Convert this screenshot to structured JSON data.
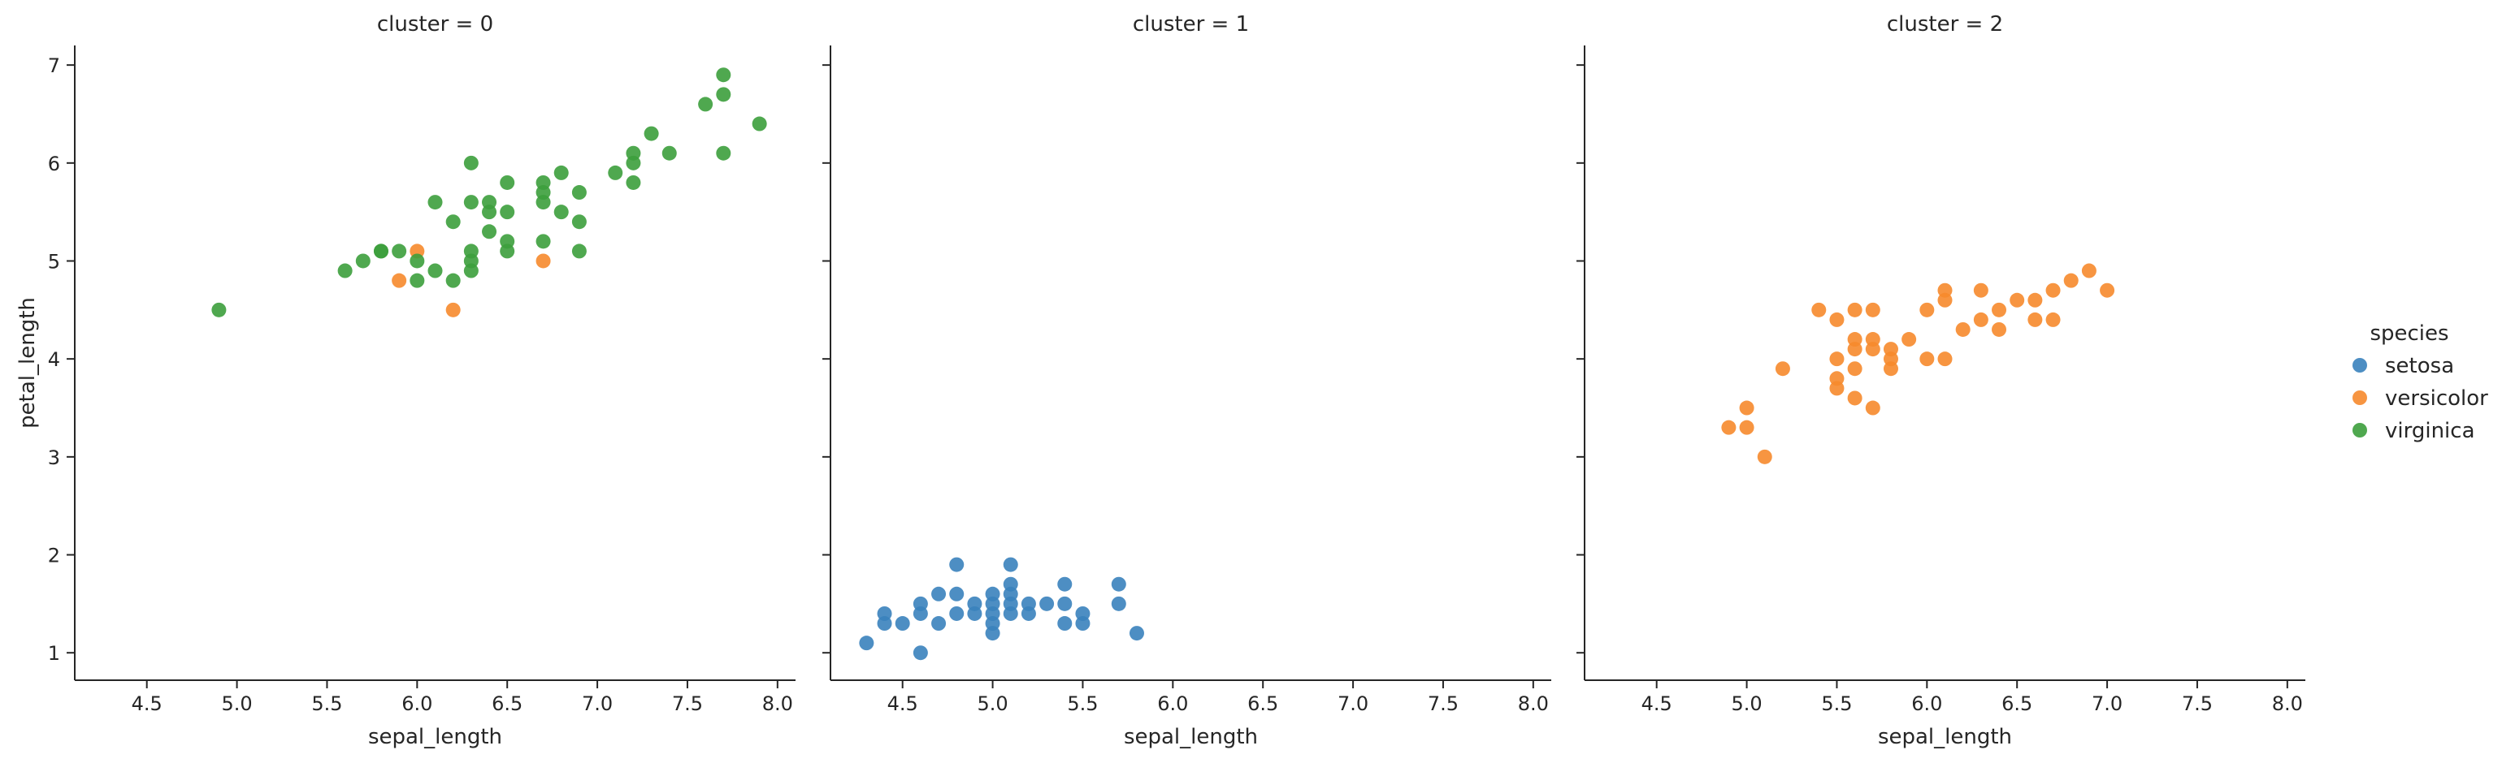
{
  "chart_data": {
    "type": "scatter",
    "xlabel": "sepal_length",
    "ylabel": "petal_length",
    "xlim": [
      4.1,
      8.1
    ],
    "ylim": [
      0.72,
      7.2
    ],
    "x_ticks": [
      "4.5",
      "5.0",
      "5.5",
      "6.0",
      "6.5",
      "7.0",
      "7.5",
      "8.0"
    ],
    "y_ticks": [
      "1",
      "2",
      "3",
      "4",
      "5",
      "6",
      "7"
    ],
    "grid": false,
    "legend": {
      "title": "species",
      "placement": "right",
      "entries": [
        {
          "label": "setosa",
          "color": "#3a82bd"
        },
        {
          "label": "versicolor",
          "color": "#f6892c"
        },
        {
          "label": "virginica",
          "color": "#3c9f3c"
        }
      ]
    },
    "panels": [
      {
        "title": "cluster = 0",
        "series": [
          {
            "species": "versicolor",
            "points": [
              [
                5.9,
                4.8
              ],
              [
                6.0,
                5.1
              ],
              [
                6.2,
                4.5
              ],
              [
                6.7,
                5.0
              ]
            ]
          },
          {
            "species": "virginica",
            "points": [
              [
                4.9,
                4.5
              ],
              [
                5.6,
                4.9
              ],
              [
                5.7,
                5.0
              ],
              [
                5.8,
                5.1
              ],
              [
                5.8,
                5.1
              ],
              [
                5.9,
                5.1
              ],
              [
                6.0,
                4.8
              ],
              [
                6.0,
                5.0
              ],
              [
                6.1,
                4.9
              ],
              [
                6.1,
                5.6
              ],
              [
                6.2,
                4.8
              ],
              [
                6.2,
                5.4
              ],
              [
                6.3,
                4.9
              ],
              [
                6.3,
                5.0
              ],
              [
                6.3,
                5.1
              ],
              [
                6.3,
                5.6
              ],
              [
                6.3,
                6.0
              ],
              [
                6.4,
                5.3
              ],
              [
                6.4,
                5.5
              ],
              [
                6.4,
                5.6
              ],
              [
                6.5,
                5.1
              ],
              [
                6.5,
                5.2
              ],
              [
                6.5,
                5.5
              ],
              [
                6.5,
                5.8
              ],
              [
                6.7,
                5.2
              ],
              [
                6.7,
                5.6
              ],
              [
                6.7,
                5.7
              ],
              [
                6.7,
                5.8
              ],
              [
                6.8,
                5.5
              ],
              [
                6.8,
                5.9
              ],
              [
                6.9,
                5.1
              ],
              [
                6.9,
                5.4
              ],
              [
                6.9,
                5.7
              ],
              [
                7.1,
                5.9
              ],
              [
                7.2,
                5.8
              ],
              [
                7.2,
                6.0
              ],
              [
                7.2,
                6.1
              ],
              [
                7.3,
                6.3
              ],
              [
                7.4,
                6.1
              ],
              [
                7.6,
                6.6
              ],
              [
                7.7,
                6.1
              ],
              [
                7.7,
                6.7
              ],
              [
                7.7,
                6.9
              ],
              [
                7.9,
                6.4
              ]
            ]
          }
        ]
      },
      {
        "title": "cluster = 1",
        "series": [
          {
            "species": "setosa",
            "points": [
              [
                4.3,
                1.1
              ],
              [
                4.4,
                1.3
              ],
              [
                4.4,
                1.4
              ],
              [
                4.5,
                1.3
              ],
              [
                4.6,
                1.0
              ],
              [
                4.6,
                1.4
              ],
              [
                4.6,
                1.5
              ],
              [
                4.7,
                1.3
              ],
              [
                4.7,
                1.6
              ],
              [
                4.8,
                1.4
              ],
              [
                4.8,
                1.6
              ],
              [
                4.8,
                1.9
              ],
              [
                4.9,
                1.4
              ],
              [
                4.9,
                1.5
              ],
              [
                5.0,
                1.2
              ],
              [
                5.0,
                1.3
              ],
              [
                5.0,
                1.4
              ],
              [
                5.0,
                1.5
              ],
              [
                5.0,
                1.6
              ],
              [
                5.1,
                1.4
              ],
              [
                5.1,
                1.5
              ],
              [
                5.1,
                1.6
              ],
              [
                5.1,
                1.7
              ],
              [
                5.1,
                1.9
              ],
              [
                5.2,
                1.4
              ],
              [
                5.2,
                1.5
              ],
              [
                5.3,
                1.5
              ],
              [
                5.4,
                1.3
              ],
              [
                5.4,
                1.5
              ],
              [
                5.4,
                1.7
              ],
              [
                5.5,
                1.3
              ],
              [
                5.5,
                1.4
              ],
              [
                5.7,
                1.5
              ],
              [
                5.7,
                1.7
              ],
              [
                5.8,
                1.2
              ]
            ]
          }
        ]
      },
      {
        "title": "cluster = 2",
        "series": [
          {
            "species": "versicolor",
            "points": [
              [
                4.9,
                3.3
              ],
              [
                5.0,
                3.3
              ],
              [
                5.0,
                3.5
              ],
              [
                5.1,
                3.0
              ],
              [
                5.2,
                3.9
              ],
              [
                5.4,
                4.5
              ],
              [
                5.5,
                3.7
              ],
              [
                5.5,
                3.8
              ],
              [
                5.5,
                4.0
              ],
              [
                5.5,
                4.4
              ],
              [
                5.6,
                3.6
              ],
              [
                5.6,
                3.9
              ],
              [
                5.6,
                4.1
              ],
              [
                5.6,
                4.2
              ],
              [
                5.6,
                4.5
              ],
              [
                5.7,
                3.5
              ],
              [
                5.7,
                4.1
              ],
              [
                5.7,
                4.2
              ],
              [
                5.7,
                4.5
              ],
              [
                5.8,
                3.9
              ],
              [
                5.8,
                4.0
              ],
              [
                5.8,
                4.1
              ],
              [
                5.9,
                4.2
              ],
              [
                6.0,
                4.0
              ],
              [
                6.0,
                4.5
              ],
              [
                6.1,
                4.0
              ],
              [
                6.1,
                4.6
              ],
              [
                6.1,
                4.7
              ],
              [
                6.2,
                4.3
              ],
              [
                6.3,
                4.4
              ],
              [
                6.3,
                4.7
              ],
              [
                6.4,
                4.3
              ],
              [
                6.4,
                4.5
              ],
              [
                6.5,
                4.6
              ],
              [
                6.6,
                4.4
              ],
              [
                6.6,
                4.6
              ],
              [
                6.7,
                4.4
              ],
              [
                6.7,
                4.7
              ],
              [
                6.8,
                4.8
              ],
              [
                6.9,
                4.9
              ],
              [
                7.0,
                4.7
              ]
            ]
          }
        ]
      }
    ]
  }
}
